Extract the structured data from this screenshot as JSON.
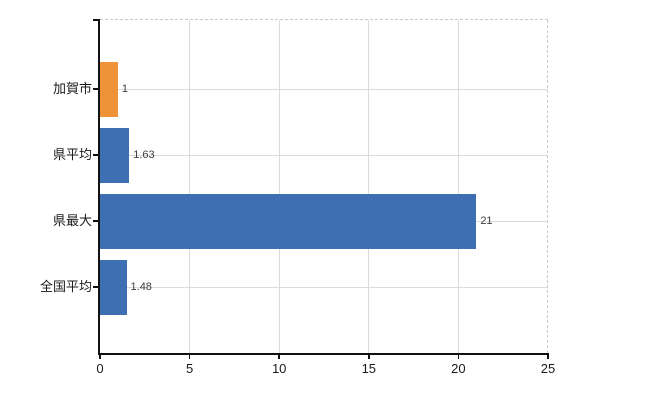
{
  "chart_data": {
    "type": "bar",
    "orientation": "horizontal",
    "categories": [
      "加賀市",
      "県平均",
      "県最大",
      "全国平均"
    ],
    "values": [
      1,
      1.63,
      21,
      1.48
    ],
    "value_labels": [
      "1",
      "1.63",
      "21",
      "1.48"
    ],
    "bar_colors": [
      "#ee9337",
      "#3e6fb2",
      "#3e6fb2",
      "#3e6fb2"
    ],
    "x_ticks": [
      0,
      5,
      10,
      15,
      20,
      25
    ],
    "x_tick_labels": [
      "0",
      "5",
      "10",
      "15",
      "20",
      "25"
    ],
    "xlim": [
      0,
      25
    ],
    "grid": true,
    "legend": false,
    "gridline_color": "#d9ddd9",
    "axis_color": "#111111",
    "value_label_color": "#3d3d3d",
    "background_color": "#ffffff"
  }
}
